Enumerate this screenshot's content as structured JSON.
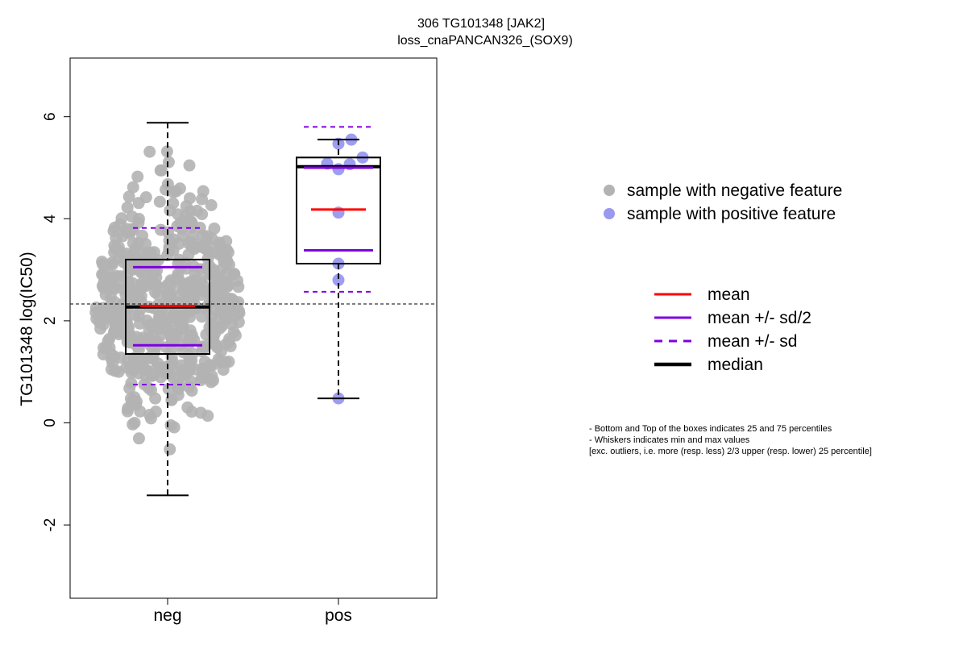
{
  "chart_data": {
    "type": "boxplot",
    "title": "306 TG101348 [JAK2]",
    "subtitle": "loss_cnaPANCAN326_(SOX9)",
    "ylabel": "TG101348 log(IC50)",
    "ylim": [
      -3.2,
      7.0
    ],
    "yticks": [
      -2,
      0,
      2,
      4,
      6
    ],
    "reference_line_y": 2.33,
    "categories": [
      "neg",
      "pos"
    ],
    "groups": [
      {
        "name": "neg",
        "color": "#b3b3b3",
        "q1": 1.35,
        "median": 2.27,
        "q3": 3.2,
        "whisker_low": -1.42,
        "whisker_high": 5.88,
        "mean": 2.29,
        "mean_minus_half_sd": 1.52,
        "mean_plus_half_sd": 3.05,
        "mean_minus_sd": 0.75,
        "mean_plus_sd": 3.82,
        "n_points": 570
      },
      {
        "name": "pos",
        "color": "#9999f0",
        "q1": 3.12,
        "median": 5.02,
        "q3": 5.2,
        "whisker_low": 0.48,
        "whisker_high": 5.55,
        "mean": 4.18,
        "mean_minus_half_sd": 3.38,
        "mean_plus_half_sd": 5.0,
        "mean_minus_sd": 2.57,
        "mean_plus_sd": 5.8,
        "points": [
          5.55,
          5.47,
          5.2,
          5.08,
          5.07,
          4.97,
          4.12,
          3.12,
          2.8,
          0.48
        ]
      }
    ],
    "legend_points": [
      {
        "label": "sample with negative feature",
        "color": "#b3b3b3"
      },
      {
        "label": "sample with positive feature",
        "color": "#9999f0"
      }
    ],
    "legend_lines": [
      {
        "label": "mean",
        "color": "#ff0000",
        "style": "solid"
      },
      {
        "label": "mean +/- sd/2",
        "color": "#8000e0",
        "style": "solid"
      },
      {
        "label": "mean +/- sd",
        "color": "#8000e0",
        "style": "dashed"
      },
      {
        "label": "median",
        "color": "#000000",
        "style": "thick"
      }
    ]
  },
  "notes": [
    "- Bottom and Top of the boxes indicates 25 and 75 percentiles",
    "- Whiskers indicates min and max values",
    "[exc. outliers, i.e. more (resp. less) 2/3 upper (resp. lower) 25 percentile]"
  ]
}
